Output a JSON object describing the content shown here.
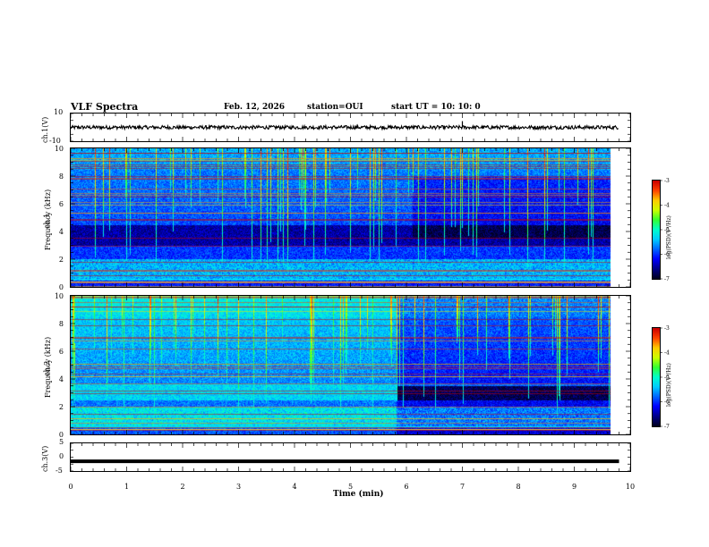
{
  "header": {
    "title": "VLF Spectra",
    "date": "Feb. 12, 2026",
    "station": "station=OUI",
    "start": "start UT =   10: 10: 0"
  },
  "colors": {
    "colormap": [
      "#000022",
      "#00008b",
      "#0000ff",
      "#0066ff",
      "#00ccff",
      "#00ffcc",
      "#33ff33",
      "#ccff00",
      "#ffcc00",
      "#ff4400",
      "#cc0000",
      "#ffffff"
    ]
  },
  "chart_data": [
    {
      "type": "line",
      "name": "ch.1 waveform",
      "ylabel": "ch.1(V)",
      "ylim": [
        -10,
        10
      ],
      "ytick_labels": [
        "10",
        "-10"
      ],
      "xlim": [
        0,
        10
      ],
      "level": 0,
      "spike_at": 7.0
    },
    {
      "type": "heatmap",
      "name": "ch.1 spectrogram",
      "ylabel_top": "ch.1",
      "ylabel": "Frequency (kHz)",
      "ylim": [
        0,
        10
      ],
      "ytick_labels": [
        "0",
        "2",
        "4",
        "6",
        "8",
        "10"
      ],
      "xlim": [
        0,
        10
      ],
      "data_end_min": 9.8,
      "colorbar": {
        "label": "log(PSD)(V²/Hz)",
        "range": [
          -7,
          -3
        ],
        "tick_labels": [
          "-3",
          "-4",
          "-5",
          "-6",
          "-7"
        ]
      }
    },
    {
      "type": "heatmap",
      "name": "ch.2 spectrogram",
      "ylabel_top": "ch.2",
      "ylabel": "Frequency (kHz)",
      "ylim": [
        0,
        10
      ],
      "ytick_labels": [
        "0",
        "2",
        "4",
        "6",
        "8",
        "10"
      ],
      "xlim": [
        0,
        10
      ],
      "data_end_min": 9.8,
      "change_at_min": 5.9,
      "colorbar": {
        "label": "log(PSD)(V²/Hz)",
        "range": [
          -7,
          -3
        ],
        "tick_labels": [
          "-3",
          "-4",
          "-5",
          "-6",
          "-7"
        ]
      }
    },
    {
      "type": "line",
      "name": "ch.3 waveform",
      "ylabel": "ch.3(V)",
      "ylim": [
        -5,
        5
      ],
      "ytick_labels": [
        "5",
        "0",
        "-5"
      ],
      "xlim": [
        0,
        10
      ],
      "level": -1.5
    }
  ],
  "xaxis": {
    "label": "Time (min)",
    "tick_labels": [
      "0",
      "1",
      "2",
      "3",
      "4",
      "5",
      "6",
      "7",
      "8",
      "9",
      "10"
    ]
  }
}
